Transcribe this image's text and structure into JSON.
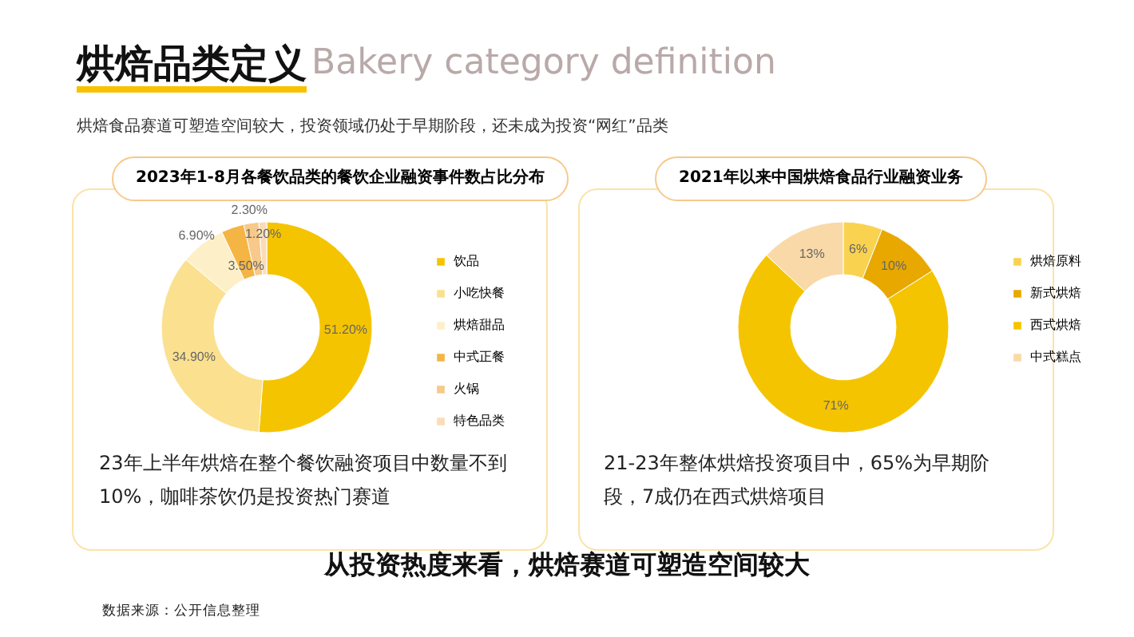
{
  "chart_data": [
    {
      "type": "donut",
      "title": "2023年1-8月各餐饮品类的餐饮企业融资事件数占比分布",
      "categories": [
        "饮品",
        "小吃快餐",
        "烘焙甜品",
        "中式正餐",
        "火锅",
        "特色品类"
      ],
      "values": [
        51.2,
        34.9,
        6.9,
        3.5,
        2.3,
        1.2
      ],
      "value_labels": [
        "51.20%",
        "34.90%",
        "6.90%",
        "3.50%",
        "2.30%",
        "1.20%"
      ],
      "colors": [
        "#f5c400",
        "#fbe08f",
        "#fdf0c8",
        "#f4b545",
        "#f7c98a",
        "#fadcb8"
      ],
      "legend": "right",
      "annotations": [
        "烘焙品类定义",
        "Bakery category definition",
        "烘焙食品赛道可塑造空间较大，投资领域仍处于早期阶段，还未成为投资“网红”品类",
        "23年上半年烘焙在整个餐饮融资项目中数量不到10%，咖啡茶饮仍是投资热门赛道"
      ]
    },
    {
      "type": "donut",
      "title": "2021年以来中国烘焙食品行业融资业务",
      "categories": [
        "烘焙原料",
        "新式烘焙",
        "西式烘焙",
        "中式糕点"
      ],
      "values": [
        6,
        10,
        71,
        13
      ],
      "value_labels": [
        "6%",
        "10%",
        "71%",
        "13%"
      ],
      "colors": [
        "#f9d250",
        "#e8a800",
        "#f5c400",
        "#f9d9a8"
      ],
      "legend": "right",
      "annotations": [
        "21-23年整体烘焙投资项目中，65%为早期阶段，7成仍在西式烘焙项目",
        "从投资热度来看，烘焙赛道可塑造空间较大",
        "数据来源：公开信息整理"
      ]
    }
  ]
}
